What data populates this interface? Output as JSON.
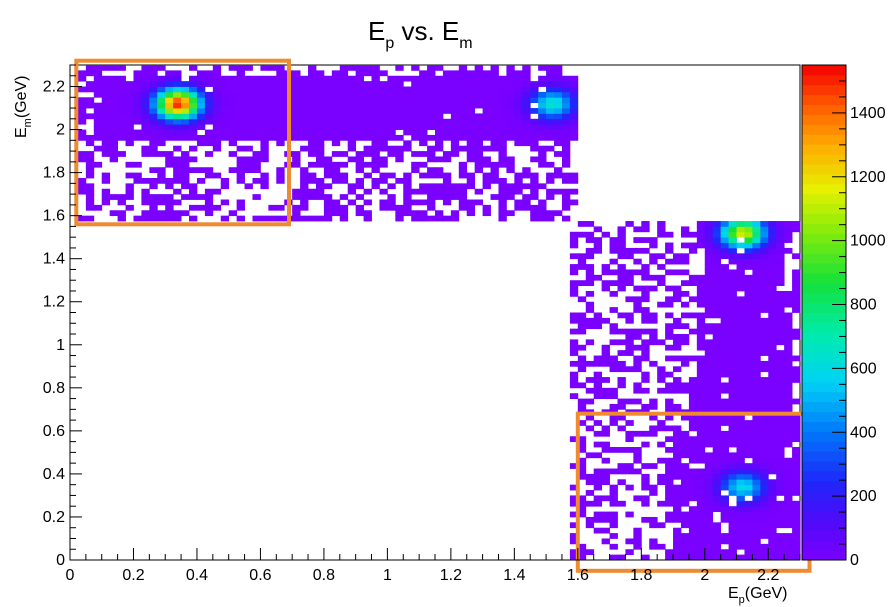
{
  "chart_data": {
    "type": "heatmap",
    "title_main": "E",
    "title_sub1": "p",
    "title_mid": " vs. E",
    "title_sub2": "m",
    "xlabel_main": "E",
    "xlabel_sub": "p",
    "xlabel_unit": "(GeV)",
    "ylabel_main": "E",
    "ylabel_sub": "m",
    "ylabel_unit": "(GeV)",
    "xlim": [
      0,
      2.3
    ],
    "ylim": [
      0,
      2.3
    ],
    "x_ticks": [
      "0",
      "0.2",
      "0.4",
      "0.6",
      "0.8",
      "1",
      "1.2",
      "1.4",
      "1.6",
      "1.8",
      "2",
      "2.2"
    ],
    "y_ticks": [
      "0",
      "0.2",
      "0.4",
      "0.6",
      "0.8",
      "1",
      "1.2",
      "1.4",
      "1.6",
      "1.8",
      "2",
      "2.2"
    ],
    "colorbar": {
      "range": [
        0,
        1550
      ],
      "ticks": [
        "0",
        "200",
        "400",
        "600",
        "800",
        "1000",
        "1200",
        "1400"
      ]
    },
    "regions": [
      {
        "name": "upper-band",
        "x": [
          0.02,
          1.6
        ],
        "y": [
          1.58,
          2.3
        ]
      },
      {
        "name": "lower-band",
        "x": [
          1.58,
          2.3
        ],
        "y": [
          0.0,
          1.58
        ]
      }
    ],
    "hotspots": [
      {
        "x": 0.34,
        "y": 2.12,
        "peak": 1500
      },
      {
        "x": 1.52,
        "y": 2.12,
        "peak": 650
      },
      {
        "x": 2.12,
        "y": 1.52,
        "peak": 1150
      },
      {
        "x": 2.12,
        "y": 0.34,
        "peak": 600
      }
    ],
    "highlight_boxes": [
      {
        "x": [
          0.02,
          0.69
        ],
        "y": [
          1.56,
          2.32
        ]
      },
      {
        "x": [
          1.6,
          2.33
        ],
        "y": [
          -0.05,
          0.68
        ]
      }
    ],
    "colors": {
      "background": "#7a00ff",
      "highlight": "#f08a30"
    }
  }
}
